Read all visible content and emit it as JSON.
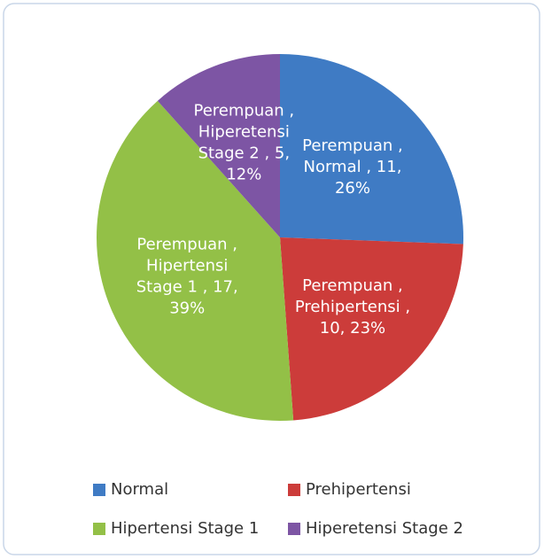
{
  "chart_data": {
    "type": "pie",
    "series_name": "Perempuan",
    "categories": [
      "Normal",
      "Prehipertensi",
      "Hipertensi Stage 1",
      "Hiperetensi Stage 2"
    ],
    "values": [
      11,
      10,
      17,
      5
    ],
    "value_labels": [
      "Perempuan , Normal , 11, 26%",
      "Perempuan , Prehipertensi , 10, 23%",
      "Perempuan , Hipertensi Stage 1 , 17, 39%",
      "Perempuan , Hiperetensi Stage 2 , 5, 12%"
    ],
    "colors": [
      "#3f7bc4",
      "#cc3c3a",
      "#93c047",
      "#7d55a4"
    ],
    "legend": "bottom"
  }
}
